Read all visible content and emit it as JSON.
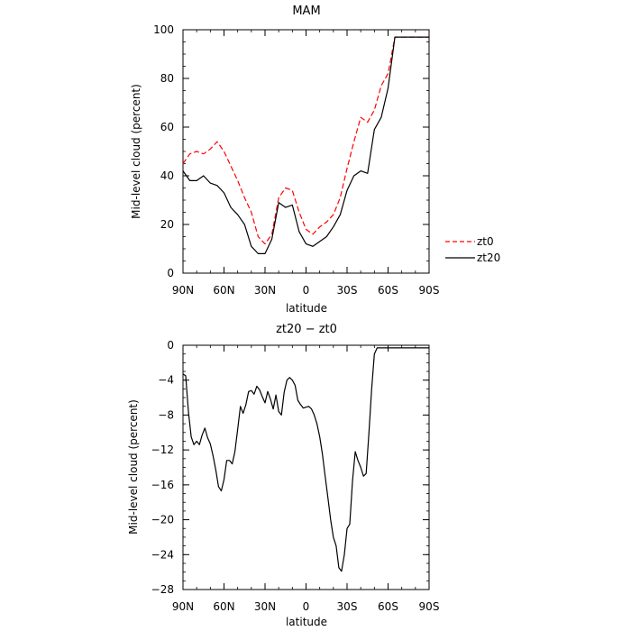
{
  "chart_data": [
    {
      "type": "line",
      "title": "MAM",
      "xlabel": "latitude",
      "ylabel": "Mid-level cloud (percent)",
      "xlim": [
        90,
        -90
      ],
      "ylim": [
        0,
        100
      ],
      "x_ticks": [
        90,
        60,
        30,
        0,
        -30,
        -60,
        -90
      ],
      "x_tick_labels": [
        "90N",
        "60N",
        "30N",
        "0",
        "30S",
        "60S",
        "90S"
      ],
      "y_ticks": [
        0,
        20,
        40,
        60,
        80,
        100
      ],
      "y_tick_labels": [
        "0",
        "20",
        "40",
        "60",
        "80",
        "100"
      ],
      "legend_position": "outside right",
      "x": [
        90,
        85,
        80,
        75,
        70,
        65,
        60,
        55,
        50,
        45,
        40,
        35,
        30,
        25,
        20,
        15,
        10,
        5,
        0,
        -5,
        -10,
        -15,
        -20,
        -25,
        -30,
        -35,
        -40,
        -45,
        -50,
        -55,
        -60,
        -65,
        -70,
        -75,
        -80,
        -85,
        -90
      ],
      "series": [
        {
          "name": "zt0",
          "color": "#ff0000",
          "dash": "dashed",
          "values": [
            45,
            49,
            50,
            49,
            51,
            54,
            50,
            44,
            38,
            31,
            25,
            15,
            12,
            16,
            31,
            35,
            34,
            25,
            18,
            16,
            19,
            21,
            24,
            31,
            43,
            54,
            64,
            62,
            67,
            77,
            82,
            97,
            97,
            97,
            97,
            97,
            97
          ]
        },
        {
          "name": "zt20",
          "color": "#000000",
          "dash": "solid",
          "values": [
            42,
            38,
            38,
            40,
            37,
            36,
            33,
            27,
            24,
            20,
            11,
            8,
            8,
            14,
            29,
            27,
            28,
            17,
            12,
            11,
            13,
            15,
            19,
            24,
            34,
            40,
            42,
            41,
            59,
            64,
            76,
            97,
            97,
            97,
            97,
            97,
            97
          ]
        }
      ]
    },
    {
      "type": "line",
      "title": "zt20 − zt0",
      "xlabel": "latitude",
      "ylabel": "Mid-level cloud (percent)",
      "xlim": [
        90,
        -90
      ],
      "ylim": [
        -28,
        0
      ],
      "x_ticks": [
        90,
        60,
        30,
        0,
        -30,
        -60,
        -90
      ],
      "x_tick_labels": [
        "90N",
        "60N",
        "30N",
        "0",
        "30S",
        "60S",
        "90S"
      ],
      "y_ticks": [
        0,
        -4,
        -8,
        -12,
        -16,
        -20,
        -24,
        -28
      ],
      "y_tick_labels": [
        "0",
        "−4",
        "−8",
        "−12",
        "−16",
        "−20",
        "−24",
        "−28"
      ],
      "x": [
        90,
        88,
        86,
        84,
        82,
        80,
        78,
        76,
        74,
        72,
        70,
        68,
        66,
        64,
        62,
        60,
        58,
        56,
        54,
        52,
        50,
        48,
        46,
        44,
        42,
        40,
        38,
        36,
        34,
        32,
        30,
        28,
        26,
        24,
        22,
        20,
        18,
        16,
        14,
        12,
        10,
        8,
        6,
        4,
        2,
        0,
        -2,
        -4,
        -6,
        -8,
        -10,
        -12,
        -14,
        -16,
        -18,
        -20,
        -22,
        -24,
        -26,
        -28,
        -30,
        -32,
        -34,
        -36,
        -38,
        -40,
        -42,
        -44,
        -46,
        -48,
        -50,
        -52,
        -54,
        -56,
        -58,
        -60,
        -62,
        -64,
        -66,
        -68,
        -70,
        -72,
        -74,
        -76,
        -78,
        -80,
        -82,
        -84,
        -86,
        -88,
        -90
      ],
      "series": [
        {
          "name": "",
          "color": "#000000",
          "dash": "solid",
          "values": [
            -3.3,
            -3.5,
            -7.7,
            -10.5,
            -11.4,
            -11.0,
            -11.4,
            -10.3,
            -9.5,
            -10.6,
            -11.3,
            -12.7,
            -14.3,
            -16.2,
            -16.7,
            -15.4,
            -13.2,
            -13.2,
            -13.6,
            -12.2,
            -9.6,
            -7.0,
            -7.8,
            -6.8,
            -5.3,
            -5.2,
            -5.6,
            -4.7,
            -5.1,
            -5.9,
            -6.6,
            -5.3,
            -6.2,
            -7.3,
            -5.7,
            -7.6,
            -8.0,
            -5.4,
            -4.0,
            -3.7,
            -4.0,
            -4.6,
            -6.3,
            -6.8,
            -7.2,
            -7.1,
            -7.0,
            -7.3,
            -8.0,
            -9.0,
            -10.5,
            -12.5,
            -15.0,
            -17.5,
            -20.0,
            -22.0,
            -23.0,
            -25.5,
            -25.9,
            -24.0,
            -21.0,
            -20.5,
            -15.5,
            -12.2,
            -13.2,
            -14.0,
            -15.0,
            -14.7,
            -10.0,
            -5.0,
            -1.0,
            -0.3,
            -0.3,
            -0.3,
            -0.3,
            -0.3,
            -0.3,
            -0.3,
            -0.3,
            -0.3,
            -0.3,
            -0.3,
            -0.3,
            -0.3,
            -0.3,
            -0.3,
            -0.3,
            -0.3,
            -0.3,
            -0.3,
            -0.3
          ]
        }
      ]
    }
  ]
}
